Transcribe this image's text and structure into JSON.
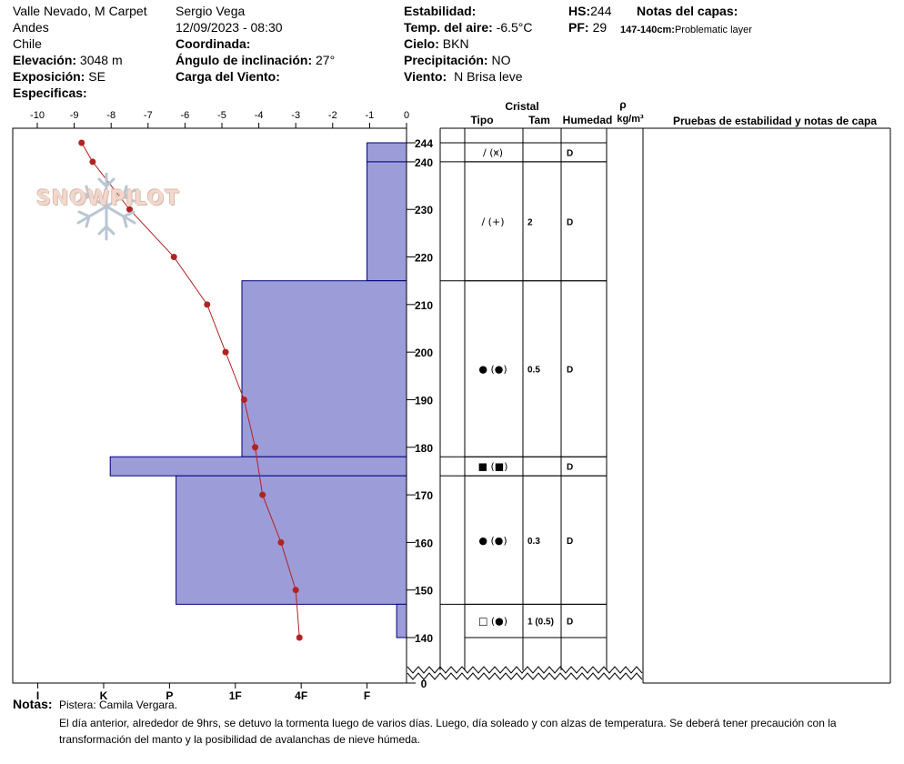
{
  "header": {
    "location": "Valle Nevado, M Carpet",
    "region": "Andes",
    "country": "Chile",
    "observer": "Sergio Vega",
    "datetime": "12/09/2023 - 08:30",
    "elevation_label": "Elevación:",
    "elevation_value": "3048 m",
    "exposure_label": "Exposición:",
    "exposure_value": "SE",
    "specifics_label": "Especificas:",
    "coord_label": "Coordinada:",
    "slope_label": "Ángulo de inclinación:",
    "slope_value": "27°",
    "wind_load_label": "Carga del Viento:",
    "stability_label": "Estabilidad:",
    "air_temp_label": "Temp. del aire:",
    "air_temp_value": "-6.5°C",
    "sky_label": "Cielo:",
    "sky_value": "BKN",
    "precip_label": "Precipitación:",
    "precip_value": "NO",
    "wind_label": "Viento:",
    "wind_value": "N Brisa leve",
    "hs_label": "HS:",
    "hs_value": "244",
    "pf_label": "PF:",
    "pf_value": "29",
    "layer_notes_label": "Notas del capas:",
    "layer_note_range": "147-140cm:",
    "layer_note_text": "Problematic layer"
  },
  "columns": {
    "crystal": "Cristal",
    "type": "Tipo",
    "size": "Tam",
    "moisture": "Humedad",
    "density_symbol": "ρ",
    "density_unit": "kg/m³",
    "tests": "Pruebas de estabilidad y notas de capa"
  },
  "logo_text": "SNOWPILOT",
  "notes": {
    "label": "Notas:",
    "line1": "Pistera: Camila Vergara.",
    "line2": "El día anterior, alrededor de 9hrs, se detuvo la tormenta luego de varios días. Luego, día soleado y con alzas de temperatura. Se deberá tener precaución con la",
    "line3": "transformación del manto y la posibilidad de avalanchas de nieve húmeda."
  },
  "colors": {
    "hardness_fill": "#9c9cd8",
    "hardness_stroke": "#000080",
    "temp_line": "#b22222"
  },
  "chart_data": {
    "type": "snow-profile",
    "temperature_axis": {
      "ticks": [
        -10,
        -9,
        -8,
        -7,
        -6,
        -5,
        -4,
        -3,
        -2,
        -1,
        0
      ],
      "range": [
        -10,
        0
      ]
    },
    "height_axis": {
      "range": [
        0,
        244
      ],
      "tick_labels": [
        "244",
        "240",
        "230",
        "220",
        "210",
        "200",
        "190",
        "180",
        "170",
        "160",
        "150",
        "140",
        "0"
      ],
      "tick_values": [
        244,
        240,
        230,
        220,
        210,
        200,
        190,
        180,
        170,
        160,
        150,
        140,
        0
      ]
    },
    "hardness_axis": {
      "labels": [
        "I",
        "K",
        "P",
        "1F",
        "4F",
        "F"
      ]
    },
    "temperature_profile": {
      "height": [
        244,
        240,
        230,
        220,
        210,
        200,
        190,
        180,
        170,
        160,
        150,
        140
      ],
      "temp": [
        -8.8,
        -8.5,
        -7.5,
        -6.3,
        -5.4,
        -4.9,
        -4.4,
        -4.1,
        -3.9,
        -3.4,
        -3.0,
        -2.9
      ]
    },
    "layers": [
      {
        "top": 244,
        "bottom": 240,
        "hardness_level": 0.6,
        "type": "/ (⩙)",
        "size": "",
        "moisture": "D"
      },
      {
        "top": 240,
        "bottom": 215,
        "hardness_level": 0.6,
        "type": "/ (+)",
        "size": "2",
        "moisture": "D"
      },
      {
        "top": 215,
        "bottom": 178,
        "hardness_level": 2.5,
        "type": "● (●)",
        "size": "0.5",
        "moisture": "D"
      },
      {
        "top": 178,
        "bottom": 174,
        "hardness_level": 4.5,
        "type": "■ (■)",
        "size": "",
        "moisture": "D"
      },
      {
        "top": 174,
        "bottom": 147,
        "hardness_level": 3.5,
        "type": "● (●)",
        "size": "0.3",
        "moisture": "D"
      },
      {
        "top": 147,
        "bottom": 140,
        "hardness_level": 0.15,
        "type": "□ (●)",
        "size": "1 (0.5)",
        "moisture": "D"
      }
    ]
  }
}
